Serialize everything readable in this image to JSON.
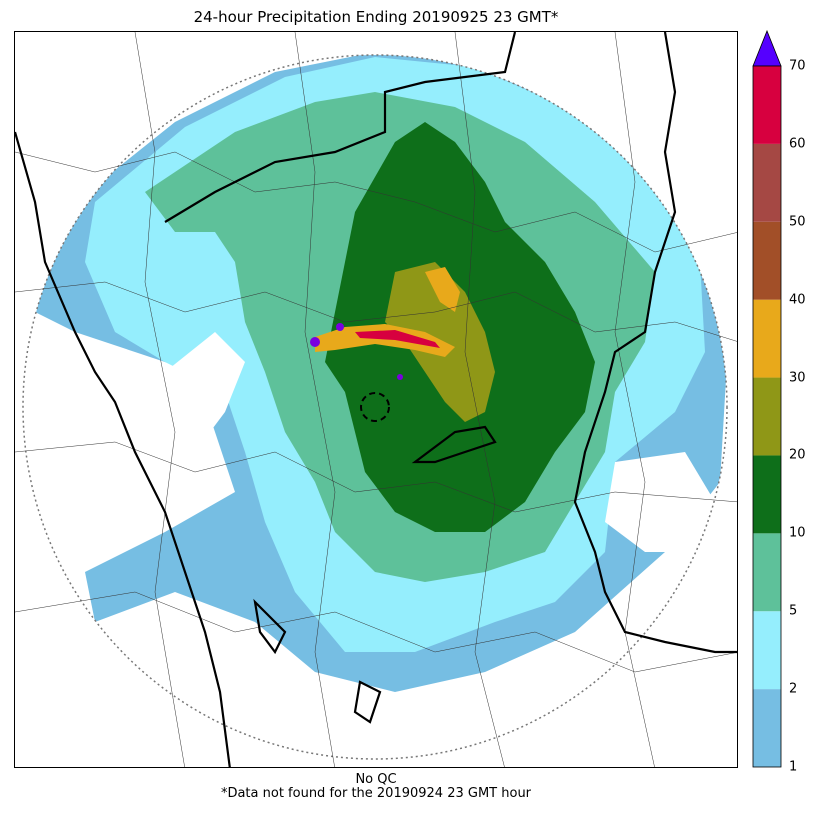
{
  "title": "24-hour Precipitation Ending 20190925 23 GMT*",
  "caption_line1": "No QC",
  "caption_line2": "*Data not found for the 20190924 23 GMT hour",
  "colorbar": {
    "ticks": [
      "1",
      "2",
      "5",
      "10",
      "20",
      "30",
      "40",
      "50",
      "60",
      "70"
    ],
    "colors": [
      "#76bee3",
      "#95eefd",
      "#5ec19a",
      "#0e6f1a",
      "#8f9717",
      "#e8a91b",
      "#a24f28",
      "#a54844",
      "#d7003f"
    ],
    "extend_color": "#5500ff"
  },
  "legend_colors": {
    "light_blue": "#76bee3",
    "cyan": "#95eefd",
    "teal_green": "#5ec19a",
    "dark_green": "#0e6f1a",
    "olive": "#8f9717",
    "orange": "#e8a91b",
    "purple": "#7a00e0"
  }
}
